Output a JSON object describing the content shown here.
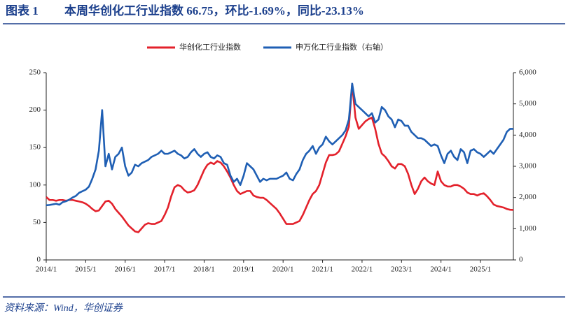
{
  "figure_label": "图表 1",
  "chart_data": {
    "type": "line",
    "title": "本周华创化工行业指数 66.75，环比-1.69%，同比-23.13%",
    "x": [
      "2014/1",
      "2014/2",
      "2014/3",
      "2014/4",
      "2014/5",
      "2014/6",
      "2014/7",
      "2014/8",
      "2014/9",
      "2014/10",
      "2014/11",
      "2014/12",
      "2015/1",
      "2015/2",
      "2015/3",
      "2015/4",
      "2015/5",
      "2015/6",
      "2015/7",
      "2015/8",
      "2015/9",
      "2015/10",
      "2015/11",
      "2015/12",
      "2016/1",
      "2016/2",
      "2016/3",
      "2016/4",
      "2016/5",
      "2016/6",
      "2016/7",
      "2016/8",
      "2016/9",
      "2016/10",
      "2016/11",
      "2016/12",
      "2017/1",
      "2017/2",
      "2017/3",
      "2017/4",
      "2017/5",
      "2017/6",
      "2017/7",
      "2017/8",
      "2017/9",
      "2017/10",
      "2017/11",
      "2017/12",
      "2018/1",
      "2018/2",
      "2018/3",
      "2018/4",
      "2018/5",
      "2018/6",
      "2018/7",
      "2018/8",
      "2018/9",
      "2018/10",
      "2018/11",
      "2018/12",
      "2019/1",
      "2019/2",
      "2019/3",
      "2019/4",
      "2019/5",
      "2019/6",
      "2019/7",
      "2019/8",
      "2019/9",
      "2019/10",
      "2019/11",
      "2019/12",
      "2020/1",
      "2020/2",
      "2020/3",
      "2020/4",
      "2020/5",
      "2020/6",
      "2020/7",
      "2020/8",
      "2020/9",
      "2020/10",
      "2020/11",
      "2020/12",
      "2021/1",
      "2021/2",
      "2021/3",
      "2021/4",
      "2021/5",
      "2021/6",
      "2021/7",
      "2021/8",
      "2021/9",
      "2021/10",
      "2021/11",
      "2021/12",
      "2022/1",
      "2022/2",
      "2022/3",
      "2022/4",
      "2022/5",
      "2022/6",
      "2022/7",
      "2022/8",
      "2022/9",
      "2022/10",
      "2022/11",
      "2022/12",
      "2023/1",
      "2023/2",
      "2023/3",
      "2023/4",
      "2023/5",
      "2023/6",
      "2023/7",
      "2023/8",
      "2023/9",
      "2023/10",
      "2023/11",
      "2023/12",
      "2024/1",
      "2024/2",
      "2024/3",
      "2024/4",
      "2024/5",
      "2024/6",
      "2024/7",
      "2024/8",
      "2024/9",
      "2024/10",
      "2024/11",
      "2024/12",
      "2025/1",
      "2025/2",
      "2025/3",
      "2025/4",
      "2025/5",
      "2025/6",
      "2025/7",
      "2025/8",
      "2025/9",
      "2025/10",
      "2025/11"
    ],
    "series": [
      {
        "name": "华创化工行业指数",
        "color": "#e3212b",
        "values": [
          84,
          80,
          80,
          79,
          80,
          80,
          79,
          80,
          80,
          79,
          78,
          77,
          75,
          72,
          68,
          65,
          66,
          72,
          78,
          79,
          75,
          68,
          63,
          58,
          52,
          46,
          42,
          38,
          37,
          42,
          47,
          49,
          48,
          48,
          50,
          52,
          60,
          70,
          85,
          97,
          100,
          98,
          93,
          90,
          91,
          93,
          100,
          110,
          120,
          127,
          130,
          128,
          132,
          130,
          125,
          118,
          110,
          100,
          92,
          88,
          90,
          92,
          92,
          86,
          84,
          83,
          83,
          80,
          76,
          72,
          68,
          62,
          55,
          48,
          48,
          48,
          50,
          52,
          60,
          70,
          80,
          88,
          92,
          100,
          115,
          130,
          140,
          140,
          141,
          145,
          155,
          165,
          178,
          235,
          190,
          175,
          180,
          185,
          188,
          190,
          175,
          155,
          142,
          138,
          132,
          125,
          122,
          128,
          128,
          125,
          115,
          100,
          88,
          95,
          105,
          110,
          105,
          102,
          100,
          118,
          105,
          100,
          98,
          98,
          100,
          100,
          98,
          95,
          90,
          88,
          88,
          86,
          88,
          89,
          85,
          80,
          74,
          72,
          71,
          70,
          68,
          67,
          66.75
        ]
      },
      {
        "name": "申万化工行业指数（右轴）",
        "color": "#1f5fb4",
        "axis": "y2",
        "values": [
          1750,
          1760,
          1780,
          1800,
          1770,
          1850,
          1880,
          1930,
          2000,
          2050,
          2150,
          2200,
          2250,
          2350,
          2600,
          2900,
          3500,
          4800,
          3000,
          3400,
          2900,
          3300,
          3400,
          3600,
          3000,
          2700,
          2800,
          3050,
          3000,
          3100,
          3150,
          3200,
          3300,
          3350,
          3400,
          3500,
          3400,
          3400,
          3450,
          3500,
          3400,
          3350,
          3250,
          3300,
          3450,
          3550,
          3400,
          3300,
          3400,
          3450,
          3300,
          3250,
          3350,
          3300,
          3100,
          3050,
          2700,
          2500,
          2600,
          2400,
          2700,
          3100,
          3000,
          2900,
          2700,
          2500,
          2600,
          2550,
          2600,
          2600,
          2600,
          2650,
          2700,
          2800,
          2600,
          2550,
          2750,
          2900,
          3200,
          3400,
          3500,
          3650,
          3400,
          3600,
          3700,
          3950,
          3800,
          3700,
          3800,
          3900,
          4000,
          4150,
          4500,
          5650,
          5000,
          4900,
          4800,
          4700,
          4600,
          4700,
          4400,
          4500,
          4900,
          4800,
          4600,
          4500,
          4250,
          4500,
          4450,
          4300,
          4300,
          4100,
          4000,
          3900,
          3900,
          3850,
          3750,
          3650,
          3700,
          3650,
          3350,
          3100,
          3400,
          3500,
          3300,
          3200,
          3550,
          3450,
          3100,
          3500,
          3550,
          3450,
          3400,
          3300,
          3400,
          3500,
          3400,
          3550,
          3700,
          3850,
          4100,
          4200,
          4200
        ]
      }
    ],
    "xticks": [
      "2014/1",
      "2015/1",
      "2016/1",
      "2017/1",
      "2018/1",
      "2019/1",
      "2020/1",
      "2021/1",
      "2022/1",
      "2023/1",
      "2024/1",
      "2025/1"
    ],
    "ylim": [
      0,
      250
    ],
    "yticks": [
      0,
      50,
      100,
      150,
      200,
      250
    ],
    "y2lim": [
      0,
      6000
    ],
    "y2ticks": [
      0,
      {
        "value": 1000,
        "label": "1,000"
      },
      {
        "value": 2000,
        "label": "2,000"
      },
      {
        "value": 3000,
        "label": "3,000"
      },
      {
        "value": 4000,
        "label": "4,000"
      },
      {
        "value": 5000,
        "label": "5,000"
      },
      {
        "value": 6000,
        "label": "6,000"
      }
    ],
    "legend": "top"
  },
  "source": "资料来源：Wind，华创证券"
}
